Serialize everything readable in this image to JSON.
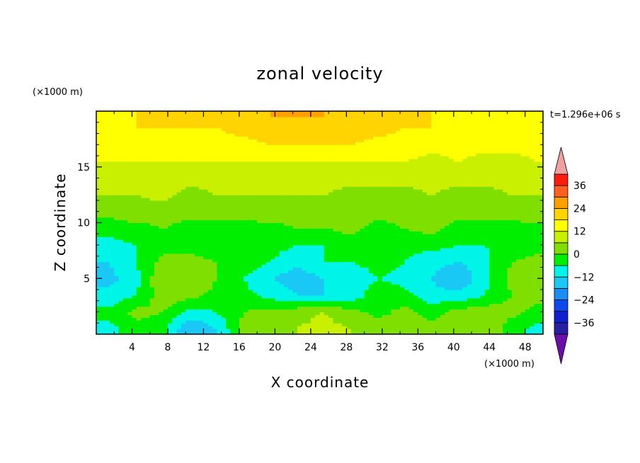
{
  "chart_data": {
    "type": "heatmap",
    "title": "zonal velocity",
    "time_label": "t=1.296e+06 s",
    "xlabel": "X coordinate",
    "ylabel": "Z coordinate",
    "x_unit": "(×1000 m)",
    "y_unit": "(×1000 m)",
    "xlim": [
      0,
      50
    ],
    "ylim": [
      0,
      20
    ],
    "x_ticks": [
      4,
      8,
      12,
      16,
      20,
      24,
      28,
      32,
      36,
      40,
      44,
      48
    ],
    "y_ticks": [
      5,
      10,
      15
    ],
    "colorbar": {
      "levels": [
        -42,
        -36,
        -30,
        -24,
        -18,
        -12,
        -6,
        0,
        6,
        12,
        18,
        24,
        30,
        36,
        42
      ],
      "labels": [
        36,
        24,
        12,
        0,
        -12,
        -24,
        -36
      ],
      "colors": [
        "#6a0fa8",
        "#2a1fa0",
        "#1020d0",
        "#1048f0",
        "#1a8ef5",
        "#1ac8f5",
        "#00f5e8",
        "#00ee00",
        "#7fe000",
        "#c8f000",
        "#ffff00",
        "#ffd400",
        "#ffa000",
        "#ff6020",
        "#ff1a10",
        "#f0a0a0"
      ],
      "extend": "both"
    },
    "x": [
      1.5,
      4.5,
      7.5,
      10.5,
      13.5,
      16.5,
      19.5,
      22.5,
      25.5,
      28.5,
      31.5,
      34.5,
      37.5,
      40.5,
      43.5,
      46.5,
      49.5
    ],
    "z": [
      0.5,
      2,
      3.5,
      5,
      6.5,
      8,
      9.5,
      11,
      12.5,
      14,
      15.5,
      17,
      18.5,
      19.5
    ],
    "values": [
      [
        -8,
        -2,
        -4,
        -18,
        -12,
        2,
        4,
        6,
        8,
        6,
        4,
        0,
        2,
        4,
        6,
        -4,
        -8
      ],
      [
        -4,
        2,
        0,
        -8,
        -6,
        0,
        2,
        4,
        6,
        2,
        -2,
        2,
        -2,
        2,
        4,
        2,
        -2
      ],
      [
        -10,
        -6,
        4,
        2,
        -2,
        -4,
        -8,
        -12,
        -12,
        -10,
        -2,
        -4,
        -10,
        -10,
        -6,
        0,
        2
      ],
      [
        -14,
        -8,
        6,
        6,
        0,
        -6,
        -12,
        -16,
        -12,
        -10,
        -6,
        -8,
        -12,
        -18,
        -8,
        2,
        2
      ],
      [
        -12,
        -6,
        2,
        2,
        0,
        -2,
        -6,
        -10,
        -6,
        -6,
        -4,
        -6,
        -10,
        -12,
        -8,
        0,
        2
      ],
      [
        -8,
        -6,
        -2,
        -2,
        -4,
        -6,
        -4,
        -6,
        -6,
        -4,
        -4,
        -4,
        -4,
        -6,
        -6,
        -4,
        -2
      ],
      [
        -4,
        -2,
        0,
        -2,
        -2,
        -4,
        -2,
        0,
        0,
        2,
        -2,
        0,
        2,
        -2,
        0,
        -2,
        -2
      ],
      [
        2,
        4,
        2,
        2,
        2,
        4,
        4,
        2,
        4,
        2,
        2,
        2,
        4,
        2,
        0,
        2,
        4
      ],
      [
        6,
        6,
        8,
        4,
        6,
        6,
        6,
        6,
        6,
        4,
        4,
        4,
        6,
        4,
        4,
        6,
        6
      ],
      [
        8,
        8,
        8,
        8,
        8,
        8,
        8,
        8,
        8,
        8,
        8,
        8,
        8,
        8,
        8,
        8,
        8
      ],
      [
        12,
        12,
        12,
        12,
        12,
        12,
        12,
        12,
        12,
        12,
        12,
        12,
        10,
        12,
        10,
        10,
        12
      ],
      [
        14,
        16,
        16,
        16,
        16,
        16,
        18,
        18,
        18,
        18,
        16,
        16,
        14,
        14,
        14,
        14,
        14
      ],
      [
        16,
        18,
        18,
        18,
        18,
        20,
        22,
        22,
        22,
        22,
        20,
        18,
        18,
        16,
        16,
        16,
        16
      ],
      [
        16,
        18,
        18,
        18,
        18,
        22,
        24,
        24,
        24,
        22,
        20,
        18,
        18,
        16,
        16,
        16,
        16
      ]
    ]
  }
}
